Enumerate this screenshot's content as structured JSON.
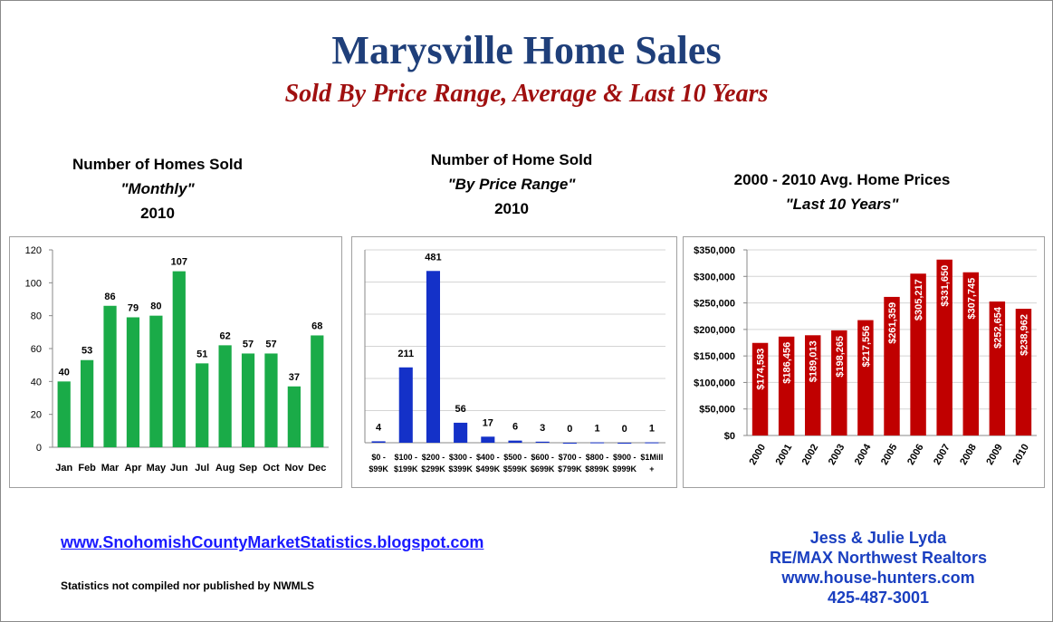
{
  "header": {
    "title": "Marysville Home Sales",
    "subtitle": "Sold By Price Range, Average & Last 10 Years"
  },
  "chart_data": [
    {
      "type": "bar",
      "title_lines": [
        "Number of Homes Sold",
        "\"Monthly\"",
        "2010"
      ],
      "categories": [
        "Jan",
        "Feb",
        "Mar",
        "Apr",
        "May",
        "Jun",
        "Jul",
        "Aug",
        "Sep",
        "Oct",
        "Nov",
        "Dec"
      ],
      "values": [
        40,
        53,
        86,
        79,
        80,
        107,
        51,
        62,
        57,
        57,
        37,
        68
      ],
      "ylim": [
        0,
        120
      ],
      "yticks": [
        "0",
        "20",
        "40",
        "60",
        "80",
        "100",
        "120"
      ],
      "color": "#1aab48",
      "grid": false
    },
    {
      "type": "bar",
      "title_lines": [
        "Number of Home Sold",
        "\"By Price Range\"",
        "2010"
      ],
      "categories": [
        [
          "$0 -",
          "$99K"
        ],
        [
          "$100 -",
          "$199K"
        ],
        [
          "$200 -",
          "$299K"
        ],
        [
          "$300 -",
          "$399K"
        ],
        [
          "$400 -",
          "$499K"
        ],
        [
          "$500 -",
          "$599K"
        ],
        [
          "$600 -",
          "$699K"
        ],
        [
          "$700 -",
          "$799K"
        ],
        [
          "$800 -",
          "$899K"
        ],
        [
          "$900 -",
          "$999K"
        ],
        [
          "$1Mill",
          "+"
        ]
      ],
      "values": [
        4,
        211,
        481,
        56,
        17,
        6,
        3,
        0,
        1,
        0,
        1
      ],
      "ylim": [
        0,
        540
      ],
      "color": "#1431c8",
      "grid": true
    },
    {
      "type": "bar",
      "title_lines": [
        "2000 - 2010 Avg. Home Prices",
        "\"Last 10 Years\""
      ],
      "categories": [
        "2000",
        "2001",
        "2002",
        "2003",
        "2004",
        "2005",
        "2006",
        "2007",
        "2008",
        "2009",
        "2010"
      ],
      "values": [
        174583,
        186456,
        189013,
        198265,
        217556,
        261359,
        305217,
        331650,
        307745,
        252654,
        238962
      ],
      "data_labels": [
        "$174,583",
        "$186,456",
        "$189,013",
        "$198,265",
        "$217,556",
        "$261,359",
        "$305,217",
        "$331,650",
        "$307,745",
        "$252,654",
        "$238,962"
      ],
      "ylim": [
        0,
        350000
      ],
      "yticks": [
        "$0",
        "$50,000",
        "$100,000",
        "$150,000",
        "$200,000",
        "$250,000",
        "$300,000",
        "$350,000"
      ],
      "color": "#c00000",
      "grid": true
    }
  ],
  "footer": {
    "link": "www.SnohomishCountyMarketStatistics.blogspot.com",
    "note": "Statistics not compiled nor published by NWMLS",
    "contact": [
      "Jess & Julie Lyda",
      "RE/MAX Northwest Realtors",
      "www.house-hunters.com",
      "425-487-3001"
    ]
  }
}
